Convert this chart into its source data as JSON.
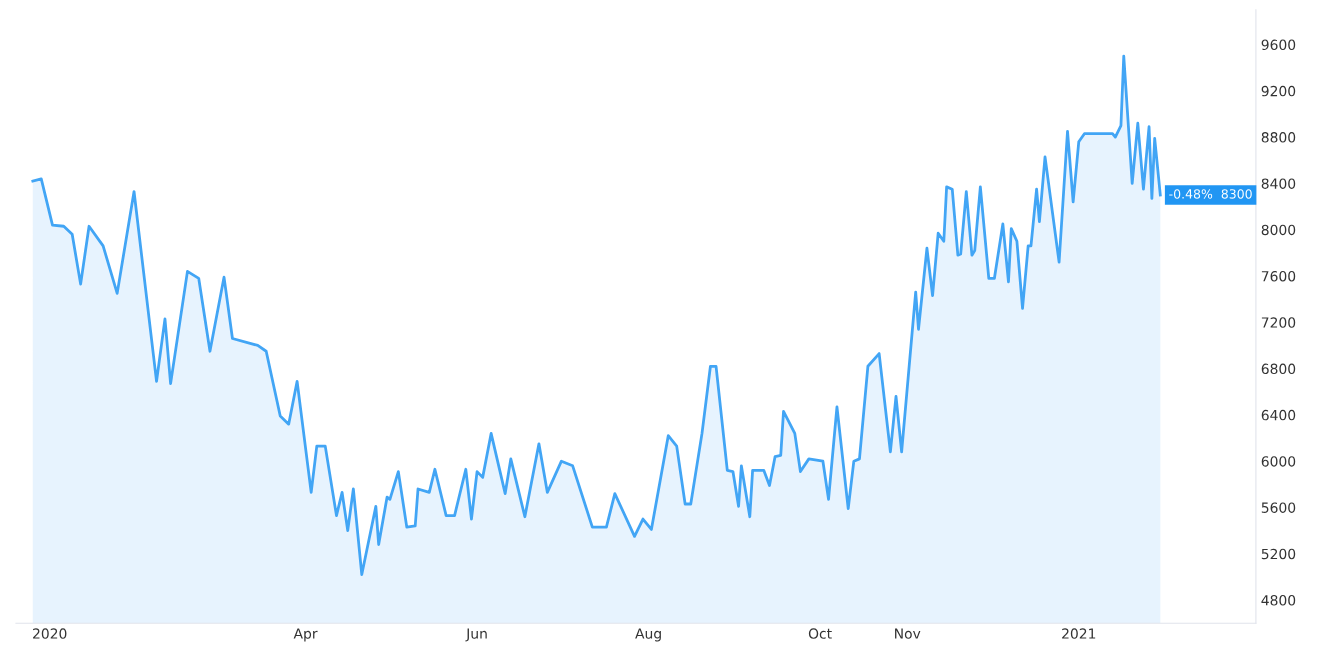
{
  "chart_data": {
    "type": "area",
    "x": [
      "2019-12-26",
      "2019-12-29",
      "2020-01-02",
      "2020-01-06",
      "2020-01-09",
      "2020-01-12",
      "2020-01-15",
      "2020-01-20",
      "2020-01-25",
      "2020-01-31",
      "2020-02-08",
      "2020-02-11",
      "2020-02-13",
      "2020-02-19",
      "2020-02-23",
      "2020-02-27",
      "2020-03-03",
      "2020-03-06",
      "2020-03-15",
      "2020-03-18",
      "2020-03-23",
      "2020-03-26",
      "2020-03-29",
      "2020-04-03",
      "2020-04-05",
      "2020-04-08",
      "2020-04-12",
      "2020-04-14",
      "2020-04-16",
      "2020-04-18",
      "2020-04-21",
      "2020-04-26",
      "2020-04-27",
      "2020-04-30",
      "2020-05-01",
      "2020-05-04",
      "2020-05-07",
      "2020-05-10",
      "2020-05-11",
      "2020-05-15",
      "2020-05-17",
      "2020-05-21",
      "2020-05-24",
      "2020-05-28",
      "2020-05-30",
      "2020-06-01",
      "2020-06-03",
      "2020-06-06",
      "2020-06-11",
      "2020-06-13",
      "2020-06-18",
      "2020-06-23",
      "2020-06-26",
      "2020-07-01",
      "2020-07-05",
      "2020-07-12",
      "2020-07-17",
      "2020-07-20",
      "2020-07-27",
      "2020-07-30",
      "2020-08-02",
      "2020-08-08",
      "2020-08-11",
      "2020-08-14",
      "2020-08-16",
      "2020-08-20",
      "2020-08-23",
      "2020-08-25",
      "2020-08-29",
      "2020-08-31",
      "2020-09-02",
      "2020-09-03",
      "2020-09-06",
      "2020-09-07",
      "2020-09-11",
      "2020-09-13",
      "2020-09-15",
      "2020-09-17",
      "2020-09-18",
      "2020-09-22",
      "2020-09-24",
      "2020-09-27",
      "2020-10-02",
      "2020-10-04",
      "2020-10-07",
      "2020-10-11",
      "2020-10-13",
      "2020-10-15",
      "2020-10-18",
      "2020-10-22",
      "2020-10-26",
      "2020-10-28",
      "2020-10-30",
      "2020-11-04",
      "2020-11-05",
      "2020-11-08",
      "2020-11-10",
      "2020-11-12",
      "2020-11-14",
      "2020-11-15",
      "2020-11-17",
      "2020-11-19",
      "2020-11-20",
      "2020-11-22",
      "2020-11-24",
      "2020-11-25",
      "2020-11-27",
      "2020-11-30",
      "2020-12-02",
      "2020-12-05",
      "2020-12-07",
      "2020-12-08",
      "2020-12-10",
      "2020-12-12",
      "2020-12-14",
      "2020-12-15",
      "2020-12-17",
      "2020-12-18",
      "2020-12-20",
      "2020-12-25",
      "2020-12-28",
      "2020-12-30",
      "2021-01-01",
      "2021-01-03",
      "2021-01-13",
      "2021-01-14",
      "2021-01-16",
      "2021-01-17",
      "2021-01-20",
      "2021-01-22",
      "2021-01-24",
      "2021-01-26",
      "2021-01-27",
      "2021-01-28",
      "2021-01-30"
    ],
    "series": [
      {
        "color": "#42a5f5",
        "values": [
          8420,
          8440,
          8040,
          8030,
          7960,
          7530,
          8030,
          7860,
          7450,
          8330,
          6690,
          7230,
          6670,
          7640,
          7580,
          6950,
          7590,
          7060,
          7000,
          6950,
          6390,
          6320,
          6690,
          5730,
          6130,
          6130,
          5530,
          5730,
          5400,
          5760,
          5020,
          5610,
          5280,
          5690,
          5670,
          5910,
          5430,
          5440,
          5760,
          5730,
          5930,
          5530,
          5530,
          5930,
          5500,
          5910,
          5860,
          6240,
          5720,
          6020,
          5520,
          6150,
          5730,
          6000,
          5960,
          5430,
          5430,
          5720,
          5350,
          5500,
          5410,
          6220,
          6130,
          5630,
          5630,
          6240,
          6820,
          6820,
          5920,
          5910,
          5610,
          5960,
          5520,
          5920,
          5920,
          5790,
          6040,
          6050,
          6430,
          6240,
          5910,
          6020,
          6000,
          5670,
          6470,
          5590,
          6000,
          6020,
          6820,
          6930,
          6080,
          6560,
          6080,
          7460,
          7140,
          7840,
          7430,
          7970,
          7900,
          8370,
          8350,
          7780,
          7790,
          8330,
          7780,
          7820,
          8370,
          7580,
          7580,
          8050,
          7550,
          8010,
          7900,
          7320,
          7860,
          7860,
          8350,
          8070,
          8630,
          7720,
          8850,
          8240,
          8760,
          8830,
          8830,
          8800,
          8900,
          9500,
          8400,
          8920,
          8350,
          8890,
          8270,
          8790,
          8300
        ]
      }
    ],
    "xlim": [
      "2019-12-20",
      "2021-03-05"
    ],
    "xticks": [
      {
        "value": "2020-01-01",
        "label": "2020"
      },
      {
        "value": "2020-04-01",
        "label": "Apr"
      },
      {
        "value": "2020-06-01",
        "label": "Jun"
      },
      {
        "value": "2020-08-01",
        "label": "Aug"
      },
      {
        "value": "2020-10-01",
        "label": "Oct"
      },
      {
        "value": "2020-11-01",
        "label": "Nov"
      },
      {
        "value": "2021-01-01",
        "label": "2021"
      }
    ],
    "ylim": [
      4600,
      9900
    ],
    "yticks": [
      4800,
      5200,
      5600,
      6000,
      6400,
      6800,
      7200,
      7600,
      8000,
      8400,
      8800,
      9200,
      9600
    ],
    "annotations": [
      {
        "text": "-0.48%  8300",
        "x": "2021-01-30",
        "y": 8300
      }
    ],
    "grid": false,
    "legend": false,
    "marker": "none",
    "line_style": "solid"
  }
}
